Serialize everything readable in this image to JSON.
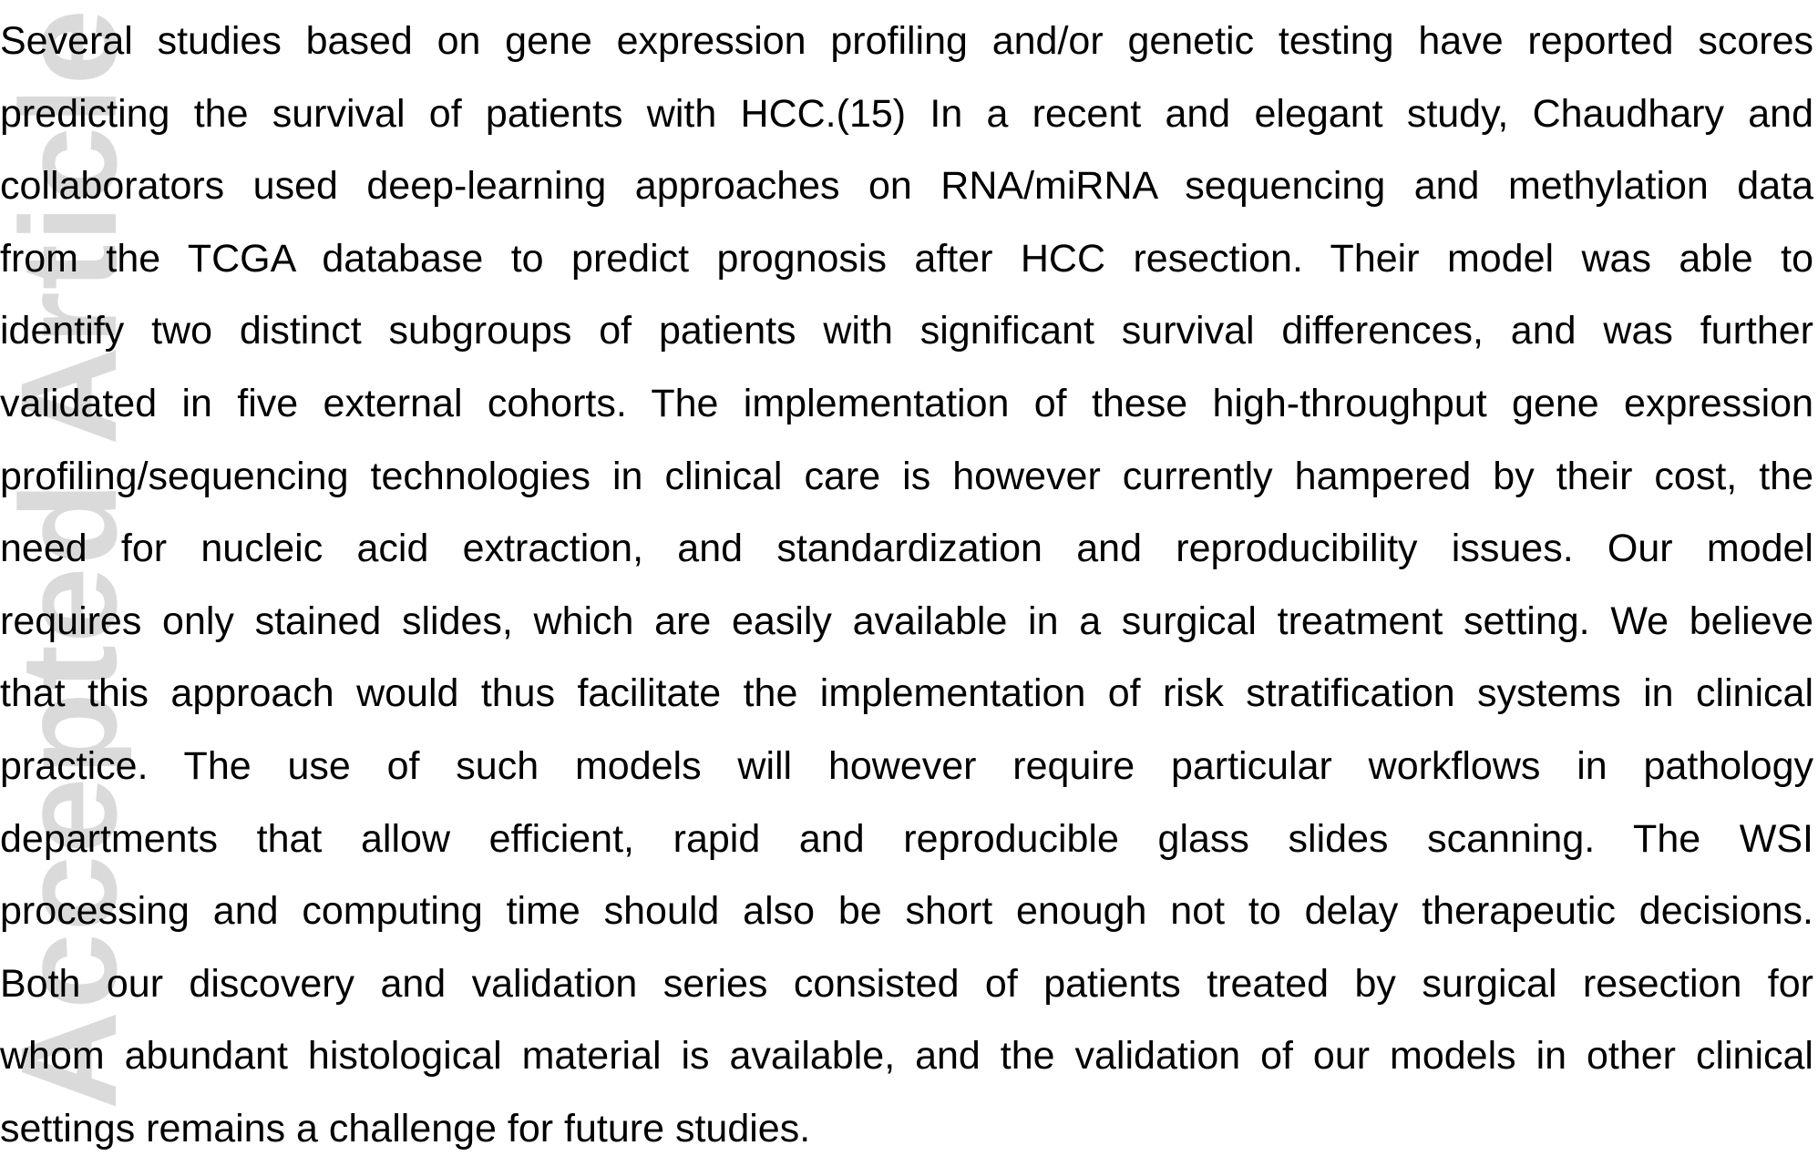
{
  "watermark": {
    "text": "Accepted Article"
  },
  "body": {
    "lines": [
      "Several studies based on gene expression profiling and/or genetic testing have reported scores",
      "predicting the survival of patients with HCC.(15)  In a recent and elegant study, Chaudhary and",
      "collaborators used deep-learning approaches on RNA/miRNA sequencing and methylation data",
      "from the TCGA database to predict prognosis after HCC resection. Their model was able to",
      "identify two distinct subgroups of patients with significant survival differences, and was further",
      "validated in five external cohorts.  The implementation of these high-throughput gene expression",
      "profiling/sequencing technologies in clinical care is however currently hampered by their cost, the",
      "need for nucleic acid extraction, and standardization and reproducibility issues. Our model",
      "requires only stained slides, which are easily available in a surgical treatment setting. We believe",
      "that this approach would thus facilitate the implementation of risk stratification systems in clinical",
      "practice. The use of such models will however require particular workflows in pathology",
      "departments that allow efficient, rapid and reproducible glass slides scanning. The WSI",
      "processing and computing time should also be short enough not to delay therapeutic decisions.",
      "Both our discovery and validation series consisted of patients treated by surgical resection for",
      "whom abundant histological material is available, and the validation of our models in other clinical",
      "settings remains a challenge for future studies."
    ]
  }
}
